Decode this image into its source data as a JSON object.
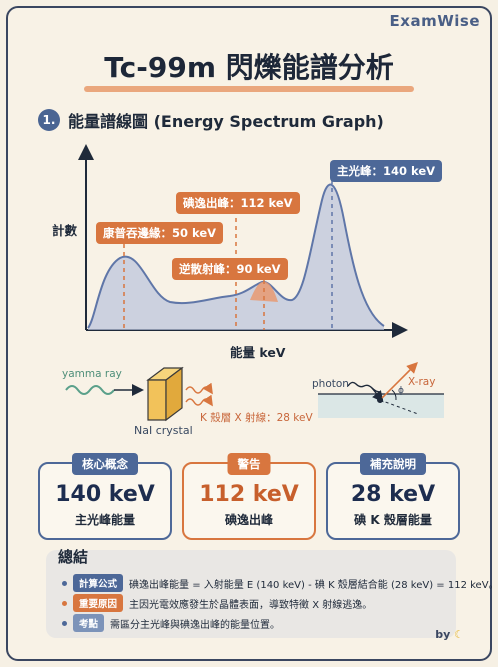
{
  "brand": "ExamWise",
  "title": "Tc-99m 閃爍能譜分析",
  "section": {
    "number": "1.",
    "title": "能量譜線圖 (Energy Spectrum Graph)"
  },
  "chart_data": {
    "type": "line",
    "xlabel": "能量 keV",
    "ylabel": "計數",
    "annotations": [
      {
        "text": "主光峰：140 keV",
        "energy": 140,
        "style": "blue"
      },
      {
        "text": "碘逸出峰：112 keV",
        "energy": 112,
        "style": "orange"
      },
      {
        "text": "康普吞邊緣：50 keV",
        "energy": 50,
        "style": "orange"
      },
      {
        "text": "逆散射峰：90 keV",
        "energy": 90,
        "style": "orange"
      }
    ],
    "colors": {
      "curve": "#5f76a8",
      "fill": "#b9c3dc",
      "highlight": "#e89a72"
    }
  },
  "diagram": {
    "left_label": "yamma ray",
    "crystal_label": "NaI crystal",
    "xray_label": "K 殼層 X 射線：28 keV",
    "photon_label": "photon",
    "xray_right_label": "X-ray",
    "phi_label": "ϕ"
  },
  "cards": [
    {
      "tag": "核心概念",
      "value": "140 keV",
      "sub": "主光峰能量",
      "style": "blue"
    },
    {
      "tag": "警告",
      "value": "112 keV",
      "sub": "碘逸出峰",
      "style": "orange"
    },
    {
      "tag": "補充說明",
      "value": "28 keV",
      "sub": "碘 K 殼層能量",
      "style": "blue"
    }
  ],
  "summary": {
    "title": "總結",
    "rows": [
      {
        "pill": "計算公式",
        "text": "碘逸出峰能量 = 入射能量 E (140 keV) - 碘 K 殼層結合能 (28 keV) = 112 keV。",
        "style": "blue"
      },
      {
        "pill": "重要原因",
        "text": "主因光電效應發生於晶體表面，導致特徵 X 射線逃逸。",
        "style": "orange"
      },
      {
        "pill": "考點",
        "text": "需區分主光峰與碘逸出峰的能量位置。",
        "style": "light"
      }
    ]
  },
  "footer": "by"
}
